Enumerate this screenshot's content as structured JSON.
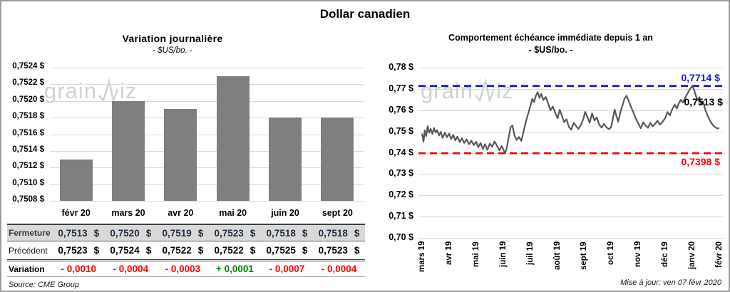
{
  "page": {
    "title": "Dollar canadien",
    "source_note": "Source: CME Group",
    "update_note": "Mise à jour: ven 07 févr 2020",
    "watermark": {
      "part1": "grain",
      "part2": "iz"
    }
  },
  "colors": {
    "bar": "#7f7f7f",
    "line": "#595959",
    "grid": "#d9d9d9",
    "high_line": "#1c1ccd",
    "low_line": "#fe0000",
    "last_label": "#000000",
    "positive": "#008000",
    "negative": "#fe0000"
  },
  "chart_data": [
    {
      "type": "bar",
      "title": "Variation  journalière",
      "subtitle": "- $US/bo. -",
      "categories": [
        "févr 20",
        "mars 20",
        "avr 20",
        "mai 20",
        "juin 20",
        "sept 20"
      ],
      "values": [
        0.7513,
        0.752,
        0.7519,
        0.7523,
        0.7518,
        0.7518
      ],
      "ylim": [
        0.7508,
        0.7524
      ],
      "grid": true,
      "y_ticks": [
        {
          "label": "0,7524 $",
          "value": 0.7524
        },
        {
          "label": "0,7522 $",
          "value": 0.7522
        },
        {
          "label": "0,7520 $",
          "value": 0.752
        },
        {
          "label": "0,7518 $",
          "value": 0.7518
        },
        {
          "label": "0,7516 $",
          "value": 0.7516
        },
        {
          "label": "0,7514 $",
          "value": 0.7514
        },
        {
          "label": "0,7512 $",
          "value": 0.7512
        },
        {
          "label": "0,7510 $",
          "value": 0.751
        },
        {
          "label": "0,7508 $",
          "value": 0.7508
        }
      ]
    },
    {
      "type": "line",
      "title": "Comportement échéance immédiate depuis 1 an",
      "subtitle": "- $US/bo. -",
      "ylim": [
        0.7,
        0.78
      ],
      "grid": true,
      "y_ticks": [
        {
          "label": "0,78 $",
          "value": 0.78
        },
        {
          "label": "0,77 $",
          "value": 0.77
        },
        {
          "label": "0,76 $",
          "value": 0.76
        },
        {
          "label": "0,75 $",
          "value": 0.75
        },
        {
          "label": "0,74 $",
          "value": 0.74
        },
        {
          "label": "0,73 $",
          "value": 0.73
        },
        {
          "label": "0,72 $",
          "value": 0.72
        },
        {
          "label": "0,71 $",
          "value": 0.71
        },
        {
          "label": "0,70 $",
          "value": 0.7
        }
      ],
      "x_ticks": [
        "mars 19",
        "avr 19",
        "mai 19",
        "juin 19",
        "juil 19",
        "août 19",
        "sept 19",
        "oct 19",
        "nov 19",
        "déc 19",
        "janv 20",
        "févr 20"
      ],
      "annotations": {
        "high": {
          "label": "0,7714 $",
          "value": 0.7714
        },
        "low": {
          "label": "0,7398 $",
          "value": 0.7398
        },
        "last": {
          "label": "0,7513 $",
          "value": 0.7513
        }
      },
      "points": [
        [
          0.0,
          0.749
        ],
        [
          0.005,
          0.7452
        ],
        [
          0.009,
          0.7505
        ],
        [
          0.014,
          0.7478
        ],
        [
          0.019,
          0.7525
        ],
        [
          0.024,
          0.7494
        ],
        [
          0.029,
          0.7512
        ],
        [
          0.035,
          0.7488
        ],
        [
          0.04,
          0.7516
        ],
        [
          0.046,
          0.7495
        ],
        [
          0.051,
          0.7506
        ],
        [
          0.057,
          0.7481
        ],
        [
          0.063,
          0.7498
        ],
        [
          0.069,
          0.747
        ],
        [
          0.077,
          0.7494
        ],
        [
          0.084,
          0.7473
        ],
        [
          0.091,
          0.749
        ],
        [
          0.098,
          0.7465
        ],
        [
          0.105,
          0.7484
        ],
        [
          0.112,
          0.7458
        ],
        [
          0.119,
          0.7476
        ],
        [
          0.127,
          0.745
        ],
        [
          0.134,
          0.7468
        ],
        [
          0.142,
          0.7446
        ],
        [
          0.15,
          0.7463
        ],
        [
          0.158,
          0.744
        ],
        [
          0.166,
          0.7457
        ],
        [
          0.174,
          0.7436
        ],
        [
          0.182,
          0.7452
        ],
        [
          0.189,
          0.7426
        ],
        [
          0.197,
          0.7446
        ],
        [
          0.205,
          0.7418
        ],
        [
          0.212,
          0.744
        ],
        [
          0.22,
          0.7414
        ],
        [
          0.228,
          0.7443
        ],
        [
          0.236,
          0.7428
        ],
        [
          0.244,
          0.7453
        ],
        [
          0.252,
          0.7433
        ],
        [
          0.26,
          0.7411
        ],
        [
          0.268,
          0.7431
        ],
        [
          0.274,
          0.7413
        ],
        [
          0.28,
          0.7398
        ],
        [
          0.286,
          0.743
        ],
        [
          0.292,
          0.7478
        ],
        [
          0.298,
          0.752
        ],
        [
          0.304,
          0.7528
        ],
        [
          0.311,
          0.7482
        ],
        [
          0.318,
          0.746
        ],
        [
          0.326,
          0.7474
        ],
        [
          0.334,
          0.7456
        ],
        [
          0.342,
          0.7502
        ],
        [
          0.35,
          0.755
        ],
        [
          0.358,
          0.7588
        ],
        [
          0.365,
          0.7622
        ],
        [
          0.371,
          0.7654
        ],
        [
          0.377,
          0.7638
        ],
        [
          0.383,
          0.7668
        ],
        [
          0.389,
          0.7685
        ],
        [
          0.395,
          0.7658
        ],
        [
          0.401,
          0.7677
        ],
        [
          0.408,
          0.7648
        ],
        [
          0.416,
          0.7662
        ],
        [
          0.424,
          0.7633
        ],
        [
          0.432,
          0.76
        ],
        [
          0.44,
          0.7617
        ],
        [
          0.448,
          0.7588
        ],
        [
          0.456,
          0.7562
        ],
        [
          0.463,
          0.7602
        ],
        [
          0.47,
          0.7576
        ],
        [
          0.478,
          0.7544
        ],
        [
          0.486,
          0.7557
        ],
        [
          0.494,
          0.7522
        ],
        [
          0.502,
          0.7508
        ],
        [
          0.51,
          0.7541
        ],
        [
          0.518,
          0.7527
        ],
        [
          0.526,
          0.7512
        ],
        [
          0.534,
          0.753
        ],
        [
          0.542,
          0.7556
        ],
        [
          0.549,
          0.7592
        ],
        [
          0.556,
          0.7568
        ],
        [
          0.564,
          0.7541
        ],
        [
          0.572,
          0.7585
        ],
        [
          0.58,
          0.7552
        ],
        [
          0.588,
          0.7566
        ],
        [
          0.596,
          0.7532
        ],
        [
          0.604,
          0.7518
        ],
        [
          0.612,
          0.7536
        ],
        [
          0.62,
          0.7521
        ],
        [
          0.628,
          0.7511
        ],
        [
          0.636,
          0.7519
        ],
        [
          0.642,
          0.7561
        ],
        [
          0.648,
          0.7603
        ],
        [
          0.654,
          0.7572
        ],
        [
          0.66,
          0.7546
        ],
        [
          0.667,
          0.7589
        ],
        [
          0.674,
          0.7621
        ],
        [
          0.681,
          0.7654
        ],
        [
          0.688,
          0.7668
        ],
        [
          0.696,
          0.7641
        ],
        [
          0.704,
          0.7612
        ],
        [
          0.712,
          0.7586
        ],
        [
          0.72,
          0.7558
        ],
        [
          0.728,
          0.7536
        ],
        [
          0.736,
          0.7515
        ],
        [
          0.744,
          0.7543
        ],
        [
          0.752,
          0.7528
        ],
        [
          0.76,
          0.7517
        ],
        [
          0.768,
          0.7541
        ],
        [
          0.776,
          0.7524
        ],
        [
          0.784,
          0.7536
        ],
        [
          0.792,
          0.7551
        ],
        [
          0.8,
          0.7532
        ],
        [
          0.809,
          0.7546
        ],
        [
          0.818,
          0.7563
        ],
        [
          0.826,
          0.7591
        ],
        [
          0.834,
          0.7576
        ],
        [
          0.842,
          0.7606
        ],
        [
          0.85,
          0.7626
        ],
        [
          0.857,
          0.7608
        ],
        [
          0.864,
          0.7633
        ],
        [
          0.871,
          0.7649
        ],
        [
          0.878,
          0.7636
        ],
        [
          0.886,
          0.7661
        ],
        [
          0.894,
          0.7681
        ],
        [
          0.901,
          0.7699
        ],
        [
          0.909,
          0.7714
        ],
        [
          0.915,
          0.7696
        ],
        [
          0.921,
          0.7668
        ],
        [
          0.927,
          0.7648
        ],
        [
          0.933,
          0.7661
        ],
        [
          0.939,
          0.7626
        ],
        [
          0.945,
          0.7641
        ],
        [
          0.951,
          0.7611
        ],
        [
          0.958,
          0.7584
        ],
        [
          0.965,
          0.7561
        ],
        [
          0.973,
          0.7541
        ],
        [
          0.981,
          0.7526
        ],
        [
          0.989,
          0.7517
        ],
        [
          1.0,
          0.7513
        ]
      ]
    }
  ],
  "table": {
    "header": [
      "févr 20",
      "mars 20",
      "avr 20",
      "mai 20",
      "juin 20",
      "sept 20"
    ],
    "unit": "$",
    "rows": [
      {
        "id": "close",
        "label": "Fermeture",
        "values": [
          "0,7513",
          "0,7520",
          "0,7519",
          "0,7523",
          "0,7518",
          "0,7518"
        ],
        "unit": "$"
      },
      {
        "id": "prev",
        "label": "Précédent",
        "values": [
          "0,7523",
          "0,7524",
          "0,7522",
          "0,7522",
          "0,7525",
          "0,7523"
        ],
        "unit": "$"
      },
      {
        "id": "var",
        "label": "Variation",
        "values": [
          "- 0,0010",
          "- 0,0004",
          "- 0,0003",
          "+ 0,0001",
          "- 0,0007",
          "- 0,0004"
        ],
        "signs": [
          "neg",
          "neg",
          "neg",
          "pos",
          "neg",
          "neg"
        ]
      }
    ]
  }
}
